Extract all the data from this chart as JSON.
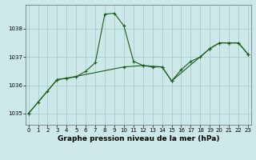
{
  "title": "Graphe pression niveau de la mer (hPa)",
  "background_color": "#cde8e8",
  "grid_color": "#aacccc",
  "line_color": "#1a5c1a",
  "series1_x": [
    0,
    1,
    2,
    3,
    4,
    5,
    6,
    7,
    8,
    9,
    10,
    11,
    12,
    13,
    14,
    15,
    16,
    17,
    18,
    19,
    20,
    21,
    22,
    23
  ],
  "series1_y": [
    1035.0,
    1035.4,
    1035.8,
    1036.2,
    1036.25,
    1036.3,
    1036.5,
    1036.8,
    1038.52,
    1038.55,
    1038.1,
    1036.85,
    1036.7,
    1036.65,
    1036.65,
    1036.15,
    1036.55,
    1036.85,
    1037.0,
    1037.3,
    1037.5,
    1037.5,
    1037.5,
    1037.1
  ],
  "series2_x": [
    0,
    3,
    4,
    10,
    12,
    14,
    15,
    19,
    20,
    21,
    22,
    23
  ],
  "series2_y": [
    1035.0,
    1036.2,
    1036.25,
    1036.65,
    1036.7,
    1036.65,
    1036.15,
    1037.3,
    1037.5,
    1037.5,
    1037.5,
    1037.1
  ],
  "ylim": [
    1034.6,
    1038.85
  ],
  "xlim": [
    -0.3,
    23.3
  ],
  "yticks": [
    1035,
    1036,
    1037,
    1038
  ],
  "xticks": [
    0,
    1,
    2,
    3,
    4,
    5,
    6,
    7,
    8,
    9,
    10,
    11,
    12,
    13,
    14,
    15,
    16,
    17,
    18,
    19,
    20,
    21,
    22,
    23
  ],
  "tick_fontsize": 5.0,
  "title_fontsize": 6.5,
  "linewidth": 0.8,
  "markersize": 3.0
}
